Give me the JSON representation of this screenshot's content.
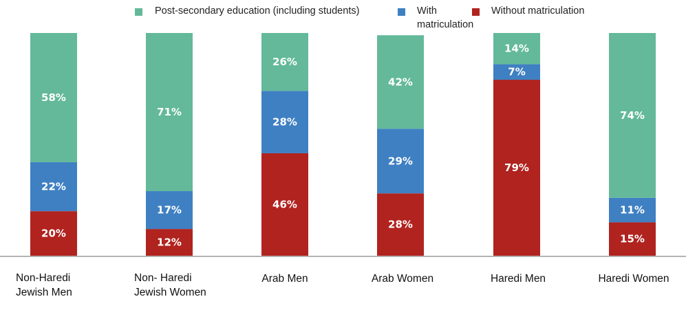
{
  "chart_data": {
    "type": "bar",
    "stacked": true,
    "percent": true,
    "categories": [
      "Non-Haredi\nJewish Men",
      "Non- Haredi\nJewish Women",
      "Arab Men",
      "Arab Women",
      "Haredi Men",
      "Haredi Women"
    ],
    "series": [
      {
        "name": "Without matriculation",
        "color": "#B0231F",
        "values": [
          20,
          12,
          46,
          28,
          79,
          15
        ]
      },
      {
        "name": "With matriculation",
        "color": "#3F80C2",
        "values": [
          22,
          17,
          28,
          29,
          7,
          11
        ]
      },
      {
        "name": "Post-secondary education (including students)",
        "color": "#63B99A",
        "values": [
          58,
          71,
          26,
          42,
          14,
          74
        ]
      }
    ],
    "data_labels": true,
    "ylim": [
      0,
      100
    ],
    "grid": false,
    "legend": "top"
  },
  "legend": {
    "post": "Post-secondary education (including students)",
    "with": "With\nmatriculation",
    "without": "Without matriculation"
  }
}
